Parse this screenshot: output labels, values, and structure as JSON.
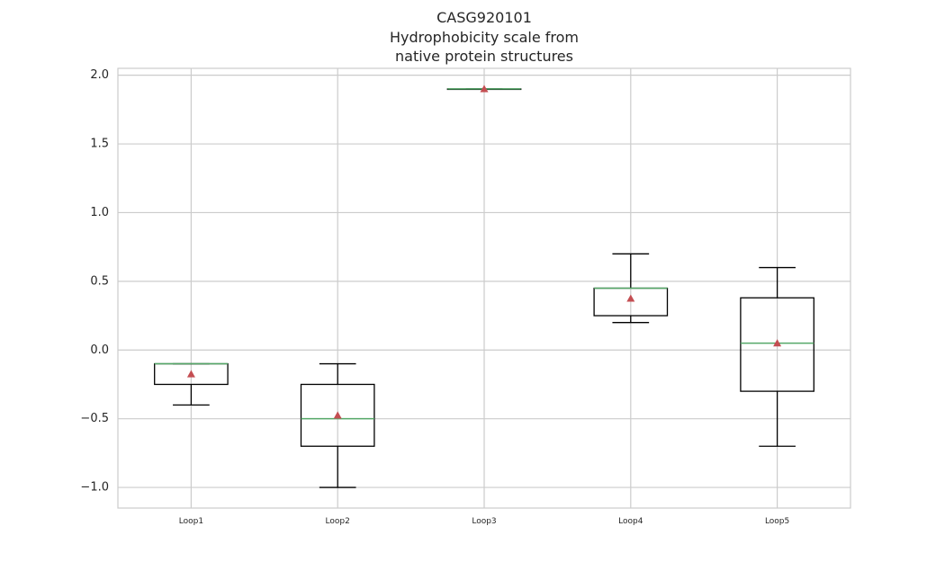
{
  "chart_data": {
    "type": "box",
    "title_lines": [
      "CASG920101",
      "Hydrophobicity scale from",
      "native protein structures"
    ],
    "xlabel": "",
    "ylabel": "",
    "ylim": [
      -1.15,
      2.05
    ],
    "yticks": [
      -1.0,
      -0.5,
      0.0,
      0.5,
      1.0,
      1.5,
      2.0
    ],
    "ytick_labels": [
      "−1.0",
      "−0.5",
      "0.0",
      "0.5",
      "1.0",
      "1.5",
      "2.0"
    ],
    "grid": true,
    "categories": [
      "Loop1",
      "Loop2",
      "Loop3",
      "Loop4",
      "Loop5"
    ],
    "boxes": [
      {
        "label": "Loop1",
        "whislo": -0.4,
        "q1": -0.25,
        "med": -0.1,
        "q3": -0.1,
        "whishi": -0.1,
        "mean": -0.175
      },
      {
        "label": "Loop2",
        "whislo": -1.0,
        "q1": -0.7,
        "med": -0.5,
        "q3": -0.25,
        "whishi": -0.1,
        "mean": -0.475
      },
      {
        "label": "Loop3",
        "whislo": 1.9,
        "q1": 1.9,
        "med": 1.9,
        "q3": 1.9,
        "whishi": 1.9,
        "mean": 1.9
      },
      {
        "label": "Loop4",
        "whislo": 0.2,
        "q1": 0.25,
        "med": 0.45,
        "q3": 0.45,
        "whishi": 0.7,
        "mean": 0.375
      },
      {
        "label": "Loop5",
        "whislo": -0.7,
        "q1": -0.3,
        "med": 0.05,
        "q3": 0.38,
        "whishi": 0.6,
        "mean": 0.05
      }
    ],
    "colors": {
      "box": "#000000",
      "median": "#55a868",
      "mean": "#c44e52",
      "grid": "#cccccc"
    }
  }
}
